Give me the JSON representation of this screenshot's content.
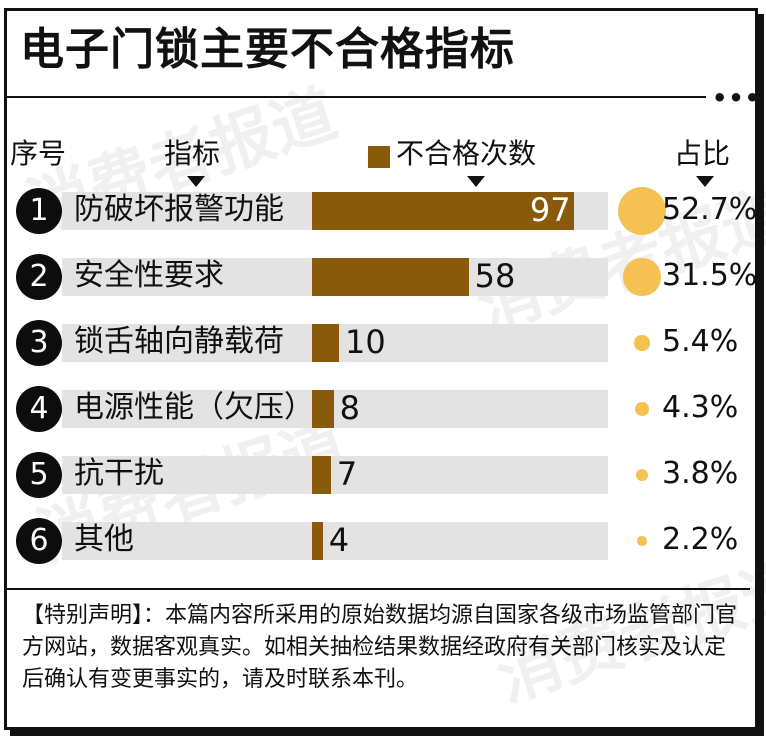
{
  "title": "电子门锁主要不合格指标",
  "headers": {
    "index": "序号",
    "indicator": "指标",
    "count": "不合格次数",
    "ratio": "占比"
  },
  "colors": {
    "bar": "#8a5a0c",
    "band": "#e3e3e3",
    "dot": "#f5c152"
  },
  "chart_data": {
    "type": "bar",
    "categories": [
      "防破坏报警功能",
      "安全性要求",
      "锁舌轴向静载荷",
      "电源性能（欠压）",
      "抗干扰",
      "其他"
    ],
    "values": [
      97,
      58,
      10,
      8,
      7,
      4
    ],
    "percentages": [
      "52.7%",
      "31.5%",
      "5.4%",
      "4.3%",
      "3.8%",
      "2.2%"
    ],
    "ranks": [
      "1",
      "2",
      "3",
      "4",
      "5",
      "6"
    ],
    "ylim": [
      0,
      100
    ]
  },
  "note": "【特别声明】：本篇内容所采用的原始数据均源自国家各级市场监管部门官方网站，数据客观真实。如相关抽检结果数据经政府有关部门核实及认定后确认有变更事实的，请及时联系本刊。",
  "watermark": "消费者报道"
}
